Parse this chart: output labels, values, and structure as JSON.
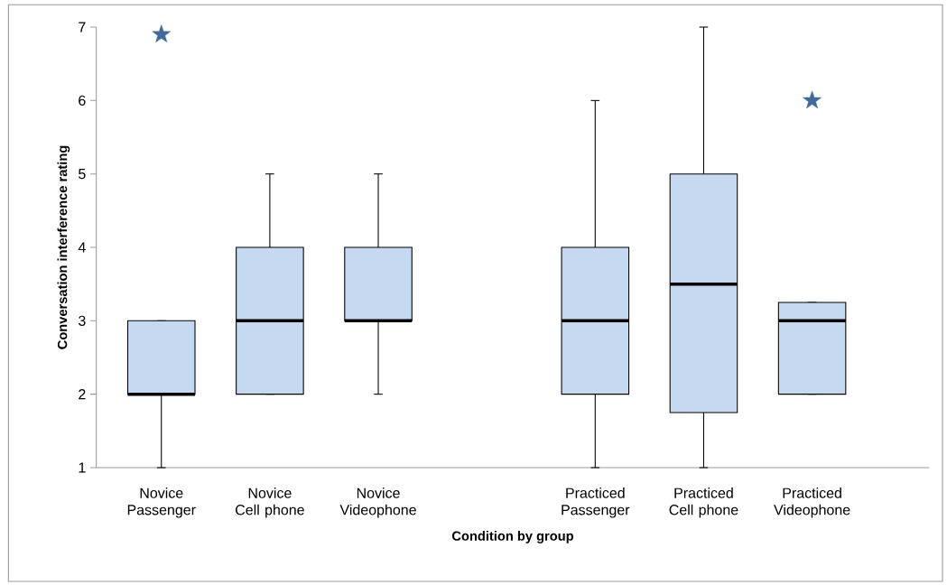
{
  "chart_data": {
    "type": "box",
    "xlabel": "Condition by group",
    "ylabel": "Conversation interference rating",
    "categories": [
      "Novice Passenger",
      "Novice Cell phone",
      "Novice Videophone",
      null,
      "Practiced Passenger",
      "Practiced Cell phone",
      "Practiced Videophone"
    ],
    "series": [
      {
        "color": "#c6d9f1",
        "boxes": [
          {
            "low": 1,
            "q1": 2,
            "median": 2,
            "q3": 3,
            "high": 3,
            "outliers": [
              6.9
            ]
          },
          {
            "low": 2,
            "q1": 2,
            "median": 3,
            "q3": 4,
            "high": 5
          },
          {
            "low": 2,
            "q1": 3,
            "median": 3,
            "q3": 4,
            "high": 5
          },
          null,
          {
            "low": 1,
            "q1": 2,
            "median": 3,
            "q3": 4,
            "high": 6
          },
          {
            "low": 1,
            "q1": 1.75,
            "median": 3.5,
            "q3": 5,
            "high": 7
          },
          {
            "low": 2,
            "q1": 2,
            "median": 3,
            "q3": 3.25,
            "high": 3.25,
            "outliers": [
              6
            ]
          }
        ]
      }
    ],
    "ylim": [
      1,
      7
    ],
    "yticks": [
      1,
      2,
      3,
      4,
      5,
      6,
      7
    ],
    "marker": "star"
  }
}
